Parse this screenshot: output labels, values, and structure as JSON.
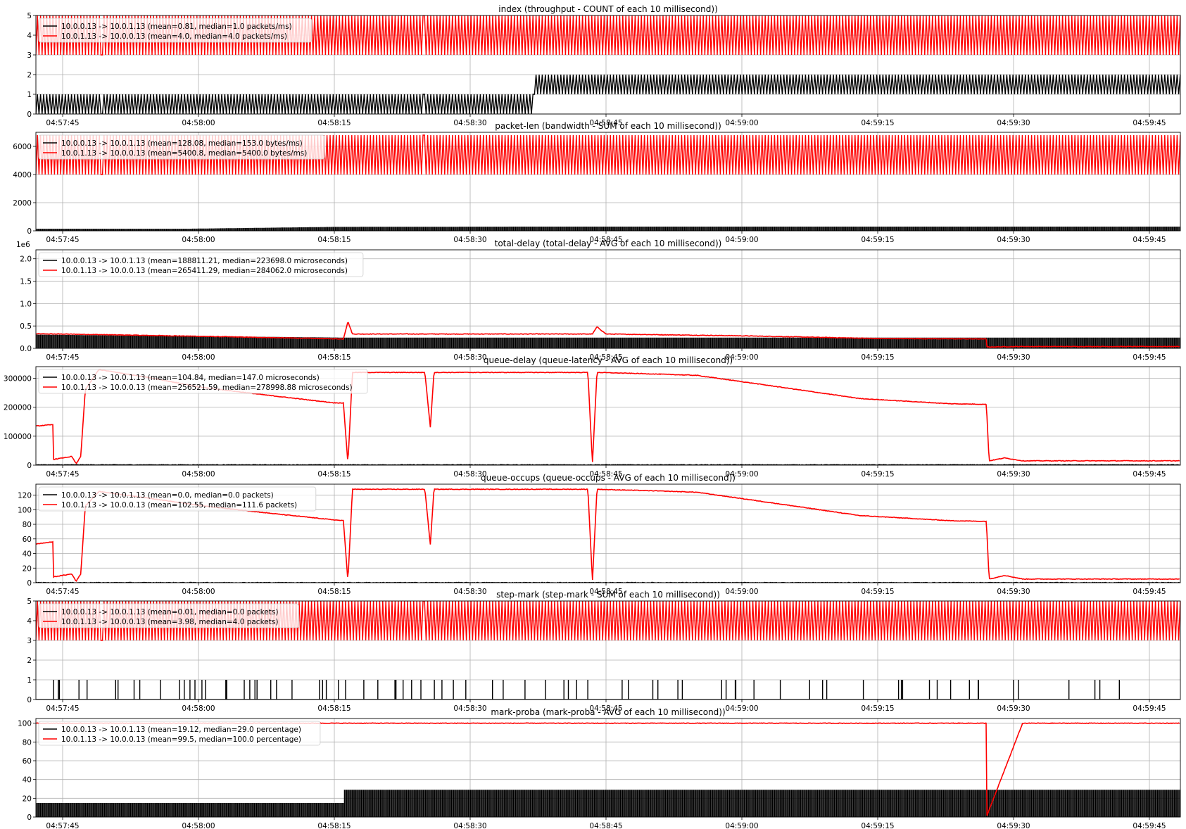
{
  "figure": {
    "x_ticks": [
      "04:57:45",
      "04:58:00",
      "04:58:15",
      "04:58:30",
      "04:58:45",
      "04:59:00",
      "04:59:15",
      "04:59:30",
      "04:59:45"
    ]
  },
  "colors": {
    "flow_a": "#000000",
    "flow_b": "#ff0000",
    "grid": "#b0b0b0"
  },
  "chart_data": [
    {
      "type": "line",
      "title": "index (throughput - COUNT of each 10 millisecond))",
      "ylim": [
        0,
        5
      ],
      "y_ticks": [
        "0",
        "1",
        "2",
        "3",
        "4",
        "5"
      ],
      "y_offset": "",
      "grid": true,
      "legend_position": "top-left",
      "legend": [
        "10.0.0.13 -> 10.0.1.13 (mean=0.81, median=1.0 packets/ms)",
        "10.0.1.13 -> 10.0.0.13 (mean=4.0, median=4.0 packets/ms)"
      ],
      "series": [
        {
          "name": "10.0.0.13 -> 10.0.1.13",
          "style": "spikes",
          "band": [
            1,
            2,
            0
          ],
          "profile": [
            [
              -16,
              2
            ],
            [
              -11.7,
              2
            ],
            [
              -11.6,
              1
            ],
            [
              -11.6,
              1
            ],
            [
              -10,
              1
            ],
            [
              14,
              1
            ],
            [
              23.5,
              1
            ],
            [
              29.6,
              2
            ],
            [
              52,
              2
            ],
            [
              52.2,
              1
            ],
            [
              54,
              1
            ]
          ]
        },
        {
          "name": "10.0.1.13 -> 10.0.0.13",
          "style": "spikes",
          "band": [
            3,
            5,
            0
          ],
          "profile": [
            [
              -16,
              4
            ],
            [
              54,
              4
            ]
          ]
        }
      ]
    },
    {
      "type": "line",
      "title": "packet-len (bandwidth - SUM of each 10 millisecond))",
      "ylim": [
        0,
        7000
      ],
      "y_ticks": [
        "0",
        "2000",
        "4000",
        "6000"
      ],
      "y_offset": "",
      "grid": true,
      "legend_position": "top-left",
      "legend": [
        "10.0.0.13 -> 10.0.1.13 (mean=128.08, median=153.0 bytes/ms)",
        "10.0.1.13 -> 10.0.0.13 (mean=5400.8, median=5400.0 bytes/ms)"
      ],
      "series": [
        {
          "name": "10.0.0.13 -> 10.0.1.13",
          "style": "band",
          "band": [
            0,
            1500,
            0
          ],
          "profile": [
            [
              -16,
              300
            ],
            [
              -11.6,
              280
            ],
            [
              -10,
              150
            ],
            [
              14,
              150
            ],
            [
              30,
              280
            ],
            [
              52,
              300
            ]
          ]
        },
        {
          "name": "10.0.1.13 -> 10.0.0.13",
          "style": "spikes",
          "band": [
            4000,
            6800,
            0
          ],
          "profile": [
            [
              -16,
              5400
            ],
            [
              54,
              5400
            ]
          ]
        }
      ]
    },
    {
      "type": "line",
      "title": "total-delay (total-delay - AVG of each 10 millisecond))",
      "ylim": [
        0,
        2200000
      ],
      "y_ticks": [
        "0.0",
        "0.5",
        "1.0",
        "1.5",
        "2.0"
      ],
      "y_offset": "1e6",
      "grid": true,
      "legend_position": "top-left",
      "legend": [
        "10.0.0.13 -> 10.0.1.13 (mean=188811.21, median=223698.0 microseconds)",
        "10.0.1.13 -> 10.0.0.13 (mean=265411.29, median=284062.0 microseconds)"
      ],
      "series": [
        {
          "name": "10.0.0.13 -> 10.0.1.13",
          "style": "band",
          "band": [
            0,
            350000,
            0
          ],
          "profile": [
            [
              -10,
              320000
            ],
            [
              31,
              240000
            ]
          ]
        },
        {
          "name": "10.0.1.13 -> 10.0.0.13",
          "style": "line",
          "profile": [
            [
              -16.5,
              30000
            ],
            [
              -13,
              110000
            ],
            [
              -11.6,
              145000
            ],
            [
              -11.6,
              150000
            ],
            [
              -9.6,
              170000
            ],
            [
              -9.6,
              1600000
            ],
            [
              -9.5,
              330000
            ],
            [
              0,
              320000
            ],
            [
              15,
              270000
            ],
            [
              31,
              210000
            ],
            [
              31.5,
              600000
            ],
            [
              32,
              320000
            ],
            [
              58.5,
              320000
            ],
            [
              59,
              480000
            ],
            [
              60,
              320000
            ],
            [
              75,
              280000
            ],
            [
              90,
              220000
            ],
            [
              102,
              210000
            ],
            [
              102,
              30000
            ],
            [
              106,
              40000
            ]
          ]
        }
      ]
    },
    {
      "type": "line",
      "title": "queue-delay (queue-latency - AVG of each 10 millisecond))",
      "ylim": [
        0,
        340000
      ],
      "y_ticks": [
        "0",
        "100000",
        "200000",
        "300000"
      ],
      "y_offset": "",
      "grid": true,
      "legend_position": "top-left",
      "legend": [
        "10.0.0.13 -> 10.0.1.13 (mean=104.84, median=147.0 microseconds)",
        "10.0.1.13 -> 10.0.0.13 (mean=256521.59, median=278998.88 microseconds)"
      ],
      "series": [
        {
          "name": "10.0.0.13 -> 10.0.1.13",
          "style": "line",
          "profile": [
            [
              -16.5,
              1000
            ],
            [
              106,
              1000
            ]
          ]
        },
        {
          "name": "10.0.1.13 -> 10.0.0.13",
          "style": "line",
          "profile": [
            [
              -16.5,
              35000
            ],
            [
              -14,
              80000
            ],
            [
              -10,
              115000
            ],
            [
              -6,
              130000
            ],
            [
              -3,
              135000
            ],
            [
              -1,
              140000
            ],
            [
              -1,
              20000
            ],
            [
              1,
              30000
            ],
            [
              1.5,
              5000
            ],
            [
              2,
              30000
            ],
            [
              2.5,
              260000
            ],
            [
              4,
              330000
            ],
            [
              10,
              300000
            ],
            [
              15,
              270000
            ],
            [
              23,
              240000
            ],
            [
              30,
              215000
            ],
            [
              31,
              215000
            ],
            [
              31.5,
              5000
            ],
            [
              32,
              320000
            ],
            [
              34,
              320000
            ],
            [
              40,
              320000
            ],
            [
              40.6,
              130000
            ],
            [
              41,
              320000
            ],
            [
              58,
              320000
            ],
            [
              58.5,
              5000
            ],
            [
              59,
              320000
            ],
            [
              65,
              315000
            ],
            [
              70,
              310000
            ],
            [
              78,
              275000
            ],
            [
              88,
              230000
            ],
            [
              98,
              212000
            ],
            [
              102,
              210000
            ],
            [
              102.3,
              15000
            ],
            [
              104,
              25000
            ],
            [
              106,
              15000
            ]
          ]
        }
      ]
    },
    {
      "type": "line",
      "title": "queue-occups (queue-occups - AVG of each 10 millisecond))",
      "ylim": [
        0,
        135
      ],
      "y_ticks": [
        "0",
        "20",
        "40",
        "60",
        "80",
        "100",
        "120"
      ],
      "y_offset": "",
      "grid": true,
      "legend_position": "top-left",
      "legend": [
        "10.0.0.13 -> 10.0.1.13 (mean=0.0, median=0.0 packets)",
        "10.0.1.13 -> 10.0.0.13 (mean=102.55, median=111.6 packets)"
      ],
      "series": [
        {
          "name": "10.0.0.13 -> 10.0.1.13",
          "style": "line",
          "profile": [
            [
              -16.5,
              0
            ],
            [
              106,
              0
            ]
          ]
        },
        {
          "name": "10.0.1.13 -> 10.0.0.13",
          "style": "line",
          "profile": [
            [
              -16.5,
              14
            ],
            [
              -14,
              30
            ],
            [
              -10,
              45
            ],
            [
              -6,
              50
            ],
            [
              -3,
              53
            ],
            [
              -1,
              56
            ],
            [
              -1,
              8
            ],
            [
              1,
              12
            ],
            [
              1.5,
              2
            ],
            [
              2,
              12
            ],
            [
              2.5,
              105
            ],
            [
              4,
              125
            ],
            [
              10,
              115
            ],
            [
              15,
              106
            ],
            [
              23,
              95
            ],
            [
              30,
              86
            ],
            [
              31,
              85
            ],
            [
              31.5,
              2
            ],
            [
              32,
              128
            ],
            [
              40,
              128
            ],
            [
              40.6,
              52
            ],
            [
              41,
              128
            ],
            [
              58,
              128
            ],
            [
              58.5,
              2
            ],
            [
              59,
              128
            ],
            [
              65,
              126
            ],
            [
              70,
              124
            ],
            [
              78,
              110
            ],
            [
              88,
              92
            ],
            [
              98,
              85
            ],
            [
              102,
              84
            ],
            [
              102.3,
              5
            ],
            [
              104,
              10
            ],
            [
              106,
              5
            ]
          ]
        }
      ]
    },
    {
      "type": "line",
      "title": "step-mark (step-mark - SUM of each 10 millisecond))",
      "ylim": [
        0,
        5
      ],
      "y_ticks": [
        "0",
        "1",
        "2",
        "3",
        "4",
        "5"
      ],
      "y_offset": "",
      "grid": true,
      "legend_position": "top-left",
      "legend": [
        "10.0.0.13 -> 10.0.1.13 (mean=0.01, median=0.0 packets)",
        "10.0.1.13 -> 10.0.0.13 (mean=3.98, median=4.0 packets)"
      ],
      "series": [
        {
          "name": "10.0.0.13 -> 10.0.1.13",
          "style": "sparse",
          "band": [
            0,
            1,
            0
          ],
          "profile": [
            [
              -16,
              0
            ],
            [
              106,
              0
            ]
          ]
        },
        {
          "name": "10.0.1.13 -> 10.0.0.13",
          "style": "spikes",
          "band": [
            3,
            5,
            0
          ],
          "profile": [
            [
              -16,
              4
            ],
            [
              54,
              4
            ]
          ]
        }
      ]
    },
    {
      "type": "line",
      "title": "mark-proba (mark-proba - AVG of each 10 millisecond))",
      "ylim": [
        0,
        105
      ],
      "y_ticks": [
        "0",
        "20",
        "40",
        "60",
        "80",
        "100"
      ],
      "y_offset": "",
      "grid": true,
      "legend_position": "top-left",
      "legend": [
        "10.0.0.13 -> 10.0.1.13 (mean=19.12, median=29.0 percentage)",
        "10.0.1.13 -> 10.0.0.13 (mean=99.5, median=100.0 percentage)"
      ],
      "series": [
        {
          "name": "10.0.0.13 -> 10.0.1.13",
          "style": "blocks",
          "profile": [
            [
              -16.5,
              32
            ],
            [
              -9.5,
              32
            ],
            [
              -9.5,
              15
            ],
            [
              31,
              15
            ],
            [
              31,
              29
            ],
            [
              102,
              29
            ]
          ]
        },
        {
          "name": "10.0.1.13 -> 10.0.0.13",
          "style": "line",
          "profile": [
            [
              -16.5,
              100
            ],
            [
              102,
              100
            ],
            [
              102,
              0
            ],
            [
              106,
              100
            ]
          ]
        }
      ]
    }
  ]
}
